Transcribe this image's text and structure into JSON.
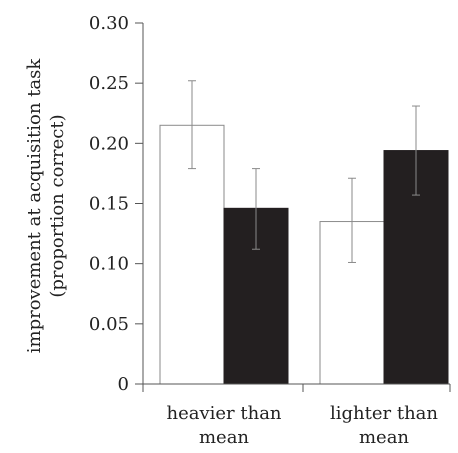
{
  "chart_data": {
    "type": "bar",
    "title": "",
    "xlabel": "",
    "ylabel_lines": [
      "improvement at acquisition task",
      "(proportion correct)"
    ],
    "ylim": [
      0,
      0.3
    ],
    "yticks": [
      "0",
      "0.05",
      "0.10",
      "0.15",
      "0.20",
      "0.25",
      "0.30"
    ],
    "categories": [
      {
        "lines": [
          "heavier than",
          "mean"
        ]
      },
      {
        "lines": [
          "lighter than",
          "mean"
        ]
      }
    ],
    "series": [
      {
        "fill": "#ffffff",
        "values": [
          0.215,
          0.135
        ],
        "err_low": [
          0.179,
          0.101
        ],
        "err_high": [
          0.252,
          0.171
        ]
      },
      {
        "fill": "#231f20",
        "values": [
          0.146,
          0.194
        ],
        "err_low": [
          0.112,
          0.157
        ],
        "err_high": [
          0.179,
          0.231
        ]
      }
    ],
    "grid": false,
    "legend": "none"
  }
}
